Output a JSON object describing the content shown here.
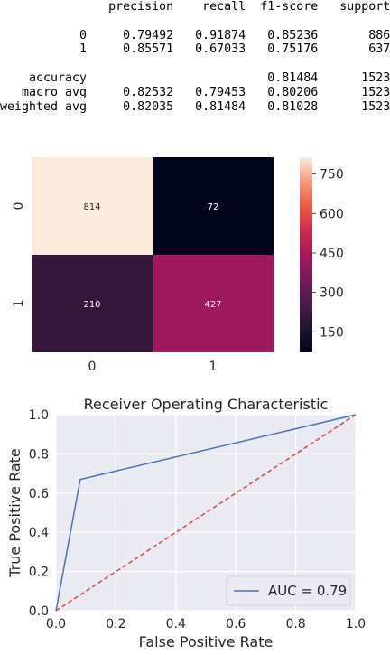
{
  "report": {
    "headers": [
      "precision",
      "recall",
      "f1-score",
      "support"
    ],
    "rows": [
      {
        "label": "0",
        "precision": "0.79492",
        "recall": "0.91874",
        "f1": "0.85236",
        "support": "886"
      },
      {
        "label": "1",
        "precision": "0.85571",
        "recall": "0.67033",
        "f1": "0.75176",
        "support": "637"
      },
      null,
      {
        "label": "accuracy",
        "precision": "",
        "recall": "",
        "f1": "0.81484",
        "support": "1523"
      },
      {
        "label": "macro avg",
        "precision": "0.82532",
        "recall": "0.79453",
        "f1": "0.80206",
        "support": "1523"
      },
      {
        "label": "weighted avg",
        "precision": "0.82035",
        "recall": "0.81484",
        "f1": "0.81028",
        "support": "1523"
      }
    ]
  },
  "chart_data": [
    {
      "type": "heatmap",
      "x_categories": [
        "0",
        "1"
      ],
      "y_categories": [
        "0",
        "1"
      ],
      "values": [
        [
          814,
          72
        ],
        [
          210,
          427
        ]
      ],
      "colorbar": {
        "ticks": [
          150,
          300,
          450,
          600,
          750
        ],
        "range": [
          72,
          814
        ],
        "colormap": "rocket"
      }
    },
    {
      "type": "line",
      "title": "Receiver Operating Characteristic",
      "xlabel": "False Positive Rate",
      "ylabel": "True Positive Rate",
      "xlim": [
        0,
        1
      ],
      "ylim": [
        0,
        1
      ],
      "xticks": [
        "0.0",
        "0.2",
        "0.4",
        "0.6",
        "0.8",
        "1.0"
      ],
      "yticks": [
        "0.0",
        "0.2",
        "0.4",
        "0.6",
        "0.8",
        "1.0"
      ],
      "grid": true,
      "legend_position": "lower-right",
      "series": [
        {
          "name": "AUC = 0.79",
          "x": [
            0,
            0.081,
            1
          ],
          "y": [
            0,
            0.67,
            1
          ],
          "color": "#4c72b0",
          "style": "solid"
        },
        {
          "x": [
            0,
            1
          ],
          "y": [
            0,
            1
          ],
          "color": "#dd4444",
          "style": "dashed"
        }
      ]
    }
  ]
}
